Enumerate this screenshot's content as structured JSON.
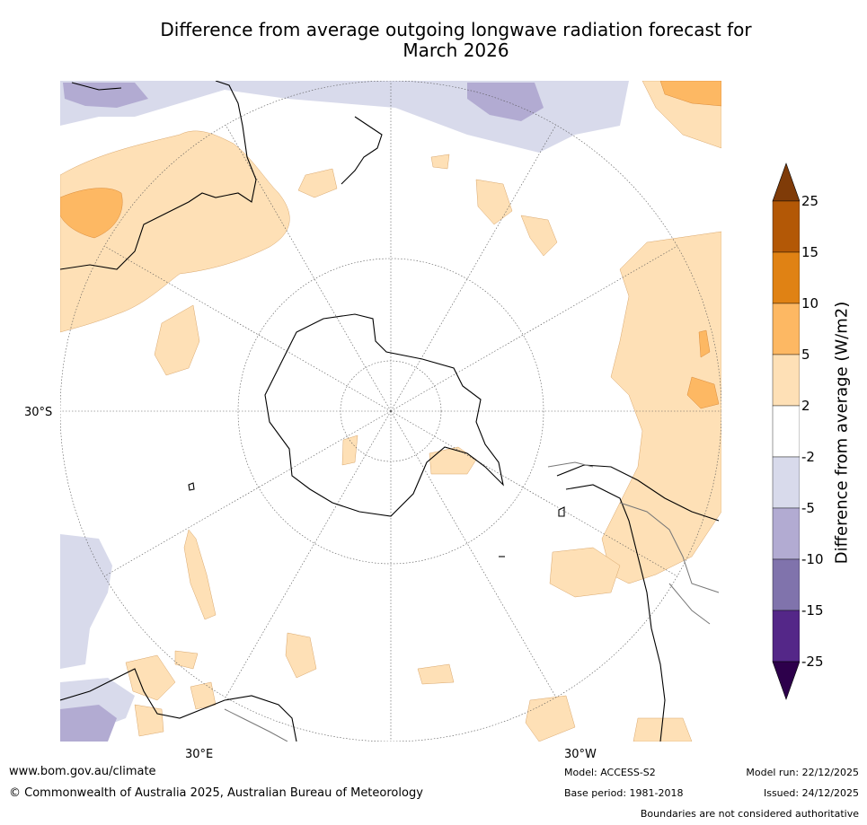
{
  "title_line1": "Difference from average outgoing longwave radiation forecast for",
  "title_line2": "March 2026",
  "map": {
    "projection": "South polar stereographic",
    "lat_label": "30°S",
    "lon_labels": [
      "30°E",
      "30°W"
    ]
  },
  "colorbar": {
    "label": "Difference from average (W/m2)",
    "ticks": [
      "25",
      "15",
      "10",
      "5",
      "2",
      "-2",
      "-5",
      "-10",
      "-15",
      "-25"
    ],
    "colors": [
      "#7f3b08",
      "#b35806",
      "#e08214",
      "#fdb863",
      "#fee0b6",
      "#ffffff",
      "#d8daeb",
      "#b2abd2",
      "#8073ac",
      "#542788",
      "#2d004b"
    ]
  },
  "footer": {
    "website": "www.bom.gov.au/climate",
    "copyright": "© Commonwealth of Australia 2025, Australian Bureau of Meteorology",
    "model": "Model: ACCESS-S2",
    "base_period": "Base period: 1981-2018",
    "model_run": "Model run: 22/12/2025",
    "issued": "Issued: 24/12/2025",
    "disclaimer": "Boundaries are not considered authoritative"
  }
}
